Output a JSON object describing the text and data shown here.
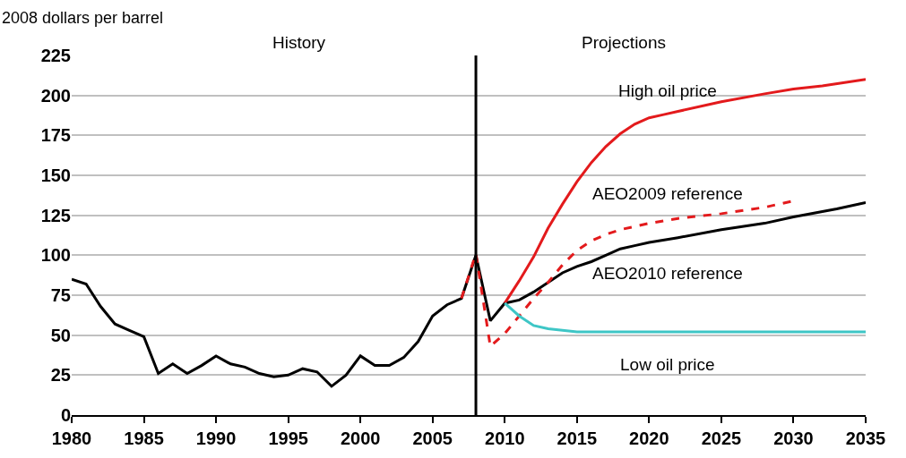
{
  "chart_data": {
    "type": "line",
    "ylabel": "2008 dollars per barrel",
    "annotations": [
      "History",
      "Projections"
    ],
    "xlim": [
      1980,
      2035
    ],
    "xticks": [
      1980,
      1985,
      1990,
      1995,
      2000,
      2005,
      2010,
      2015,
      2020,
      2025,
      2030,
      2035
    ],
    "ylim": [
      0,
      225
    ],
    "yticks": [
      0,
      25,
      50,
      75,
      100,
      125,
      150,
      175,
      200,
      225
    ],
    "grid": "y",
    "legend": false,
    "marker": "none",
    "ref_lines": [
      {
        "axis": "x",
        "value": 2008,
        "color": "#000000"
      }
    ],
    "series": [
      {
        "name": "AEO2010 reference",
        "color": "#000000",
        "line_style": "solid",
        "x": [
          1980,
          1981,
          1982,
          1983,
          1984,
          1985,
          1986,
          1987,
          1988,
          1989,
          1990,
          1991,
          1992,
          1993,
          1994,
          1995,
          1996,
          1997,
          1998,
          1999,
          2000,
          2001,
          2002,
          2003,
          2004,
          2005,
          2006,
          2007,
          2008,
          2009,
          2010,
          2011,
          2012,
          2013,
          2014,
          2015,
          2016,
          2017,
          2018,
          2019,
          2020,
          2022,
          2025,
          2028,
          2030,
          2033,
          2035
        ],
        "values": [
          85,
          82,
          68,
          57,
          53,
          49,
          26,
          32,
          26,
          31,
          37,
          32,
          30,
          26,
          24,
          25,
          29,
          27,
          18,
          25,
          37,
          31,
          31,
          36,
          46,
          62,
          69,
          73,
          100,
          59,
          70,
          72,
          77,
          83,
          89,
          93,
          96,
          100,
          104,
          106,
          108,
          111,
          116,
          120,
          124,
          129,
          133
        ]
      },
      {
        "name": "High oil price",
        "color": "#e31a1c",
        "line_style": "solid",
        "x": [
          2010,
          2011,
          2012,
          2013,
          2014,
          2015,
          2016,
          2017,
          2018,
          2019,
          2020,
          2021,
          2022,
          2025,
          2028,
          2030,
          2032,
          2035
        ],
        "values": [
          70,
          84,
          99,
          117,
          132,
          146,
          158,
          168,
          176,
          182,
          186,
          188,
          190,
          196,
          201,
          204,
          206,
          210
        ]
      },
      {
        "name": "AEO2009 reference",
        "color": "#e31a1c",
        "line_style": "dashed",
        "x": [
          2007,
          2008,
          2009,
          2010,
          2011,
          2012,
          2013,
          2014,
          2015,
          2016,
          2017,
          2018,
          2020,
          2022,
          2025,
          2028,
          2030
        ],
        "values": [
          73,
          101,
          43,
          51,
          62,
          73,
          83,
          94,
          103,
          109,
          113,
          116,
          120,
          123,
          126,
          130,
          134
        ]
      },
      {
        "name": "Low oil price",
        "color": "#3ec6c6",
        "line_style": "solid",
        "x": [
          2010,
          2011,
          2012,
          2013,
          2014,
          2015,
          2020,
          2025,
          2030,
          2035
        ],
        "values": [
          70,
          62,
          56,
          54,
          53,
          52,
          52,
          52,
          52,
          52
        ]
      }
    ]
  }
}
